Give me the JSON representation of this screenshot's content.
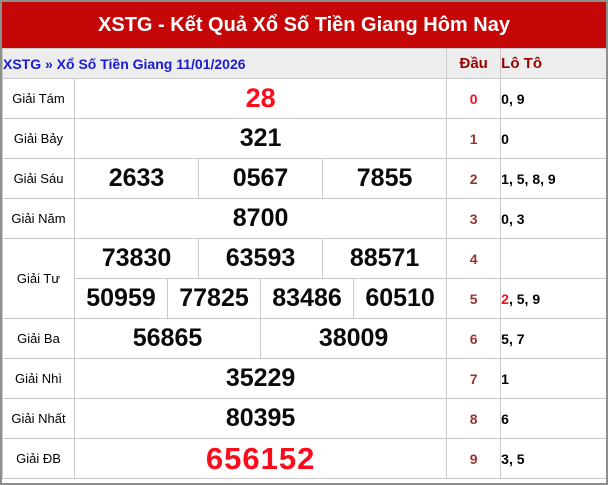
{
  "title": "XSTG - Kết Quả Xổ Số Tiền Giang Hôm Nay",
  "breadcrumb": "XSTG » Xổ Số Tiền Giang 11/01/2026",
  "columns": {
    "dau": "Đầu",
    "loto": "Lô Tô"
  },
  "colors": {
    "title_bg": "#c60707",
    "title_text": "#ffffff",
    "link_blue": "#1b1bd1",
    "header_maroon": "#990000",
    "dau_maroon": "#993333",
    "bright_red": "#fb0c1c",
    "number_black": "#0a0a0a",
    "subtitle_bg": "#ededed",
    "border": "#c9c9c9",
    "outer_border": "#8a918a"
  },
  "table": {
    "rows": [
      {
        "label": "Giải Tám",
        "rowspan": 1,
        "numbers": [
          {
            "t": "28",
            "red": true,
            "size": "lg"
          }
        ],
        "dau": {
          "t": "0",
          "red": true
        },
        "loto": [
          {
            "t": "0"
          },
          {
            "t": "9"
          }
        ]
      },
      {
        "label": "Giải Bảy",
        "rowspan": 1,
        "numbers": [
          {
            "t": "321"
          }
        ],
        "dau": {
          "t": "1"
        },
        "loto": [
          {
            "t": "0"
          }
        ]
      },
      {
        "label": "Giải Sáu",
        "rowspan": 1,
        "numbers": [
          {
            "t": "2633"
          },
          {
            "t": "0567"
          },
          {
            "t": "7855"
          }
        ],
        "dau": {
          "t": "2"
        },
        "loto": [
          {
            "t": "1"
          },
          {
            "t": "5"
          },
          {
            "t": "8"
          },
          {
            "t": "9"
          }
        ]
      },
      {
        "label": "Giải Năm",
        "rowspan": 1,
        "numbers": [
          {
            "t": "8700"
          }
        ],
        "dau": {
          "t": "3"
        },
        "loto": [
          {
            "t": "0"
          },
          {
            "t": "3"
          }
        ]
      },
      {
        "label": "Giải Tư",
        "rowspan": 2,
        "numbers": [
          {
            "t": "73830"
          },
          {
            "t": "63593"
          },
          {
            "t": "88571"
          }
        ],
        "dau": {
          "t": "4"
        },
        "loto": []
      },
      {
        "label": null,
        "rowspan": 0,
        "numbers": [
          {
            "t": "50959"
          },
          {
            "t": "77825"
          },
          {
            "t": "83486"
          },
          {
            "t": "60510"
          }
        ],
        "dau": {
          "t": "5"
        },
        "loto": [
          {
            "t": "2",
            "red": true
          },
          {
            "t": "5"
          },
          {
            "t": "9"
          }
        ]
      },
      {
        "label": "Giải Ba",
        "rowspan": 1,
        "numbers": [
          {
            "t": "56865"
          },
          {
            "t": "38009"
          }
        ],
        "dau": {
          "t": "6"
        },
        "loto": [
          {
            "t": "5"
          },
          {
            "t": "7"
          }
        ]
      },
      {
        "label": "Giải Nhì",
        "rowspan": 1,
        "numbers": [
          {
            "t": "35229"
          }
        ],
        "dau": {
          "t": "7"
        },
        "loto": [
          {
            "t": "1"
          }
        ]
      },
      {
        "label": "Giải Nhất",
        "rowspan": 1,
        "numbers": [
          {
            "t": "80395"
          }
        ],
        "dau": {
          "t": "8"
        },
        "loto": [
          {
            "t": "6"
          }
        ]
      },
      {
        "label": "Giải ĐB",
        "rowspan": 1,
        "numbers": [
          {
            "t": "656152",
            "red": true,
            "size": "xl"
          }
        ],
        "dau": {
          "t": "9"
        },
        "loto": [
          {
            "t": "3"
          },
          {
            "t": "5"
          }
        ]
      }
    ]
  }
}
